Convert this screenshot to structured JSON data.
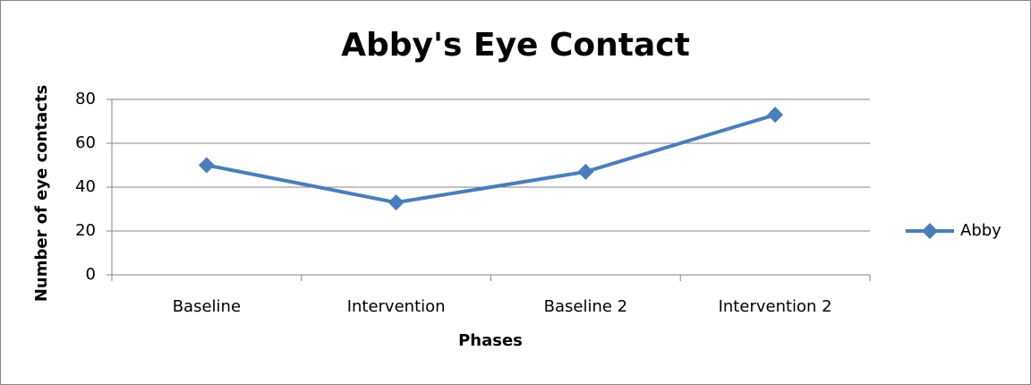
{
  "chart_data": {
    "type": "line",
    "title": "Abby's Eye Contact",
    "xlabel": "Phases",
    "ylabel": "Number of eye contacts",
    "categories": [
      "Baseline",
      "Intervention",
      "Baseline 2",
      "Intervention 2"
    ],
    "series": [
      {
        "name": "Abby",
        "color": "#4a7ebb",
        "values": [
          50,
          33,
          47,
          73
        ]
      }
    ],
    "ylim": [
      0,
      80
    ],
    "yticks": [
      0,
      20,
      40,
      60,
      80
    ],
    "grid": true,
    "legend": "right"
  }
}
